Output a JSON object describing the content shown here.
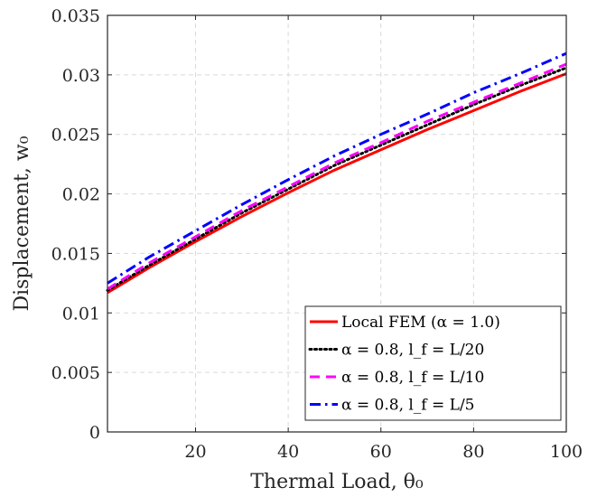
{
  "chart_data": {
    "type": "line",
    "xlabel": "Thermal Load, θ₀",
    "ylabel": "Displacement, w₀",
    "xlim": [
      1,
      100
    ],
    "ylim": [
      0,
      0.035
    ],
    "xticks": [
      20,
      40,
      60,
      80,
      100
    ],
    "xtick_labels": [
      "20",
      "40",
      "60",
      "80",
      "100"
    ],
    "yticks": [
      0,
      0.005,
      0.01,
      0.015,
      0.02,
      0.025,
      0.03,
      0.035
    ],
    "ytick_labels": [
      "0",
      "0.005",
      "0.01",
      "0.015",
      "0.02",
      "0.025",
      "0.03",
      "0.035"
    ],
    "grid": true,
    "legend_position": "bottom-right",
    "x": [
      1,
      10,
      20,
      30,
      40,
      50,
      60,
      70,
      80,
      90,
      100
    ],
    "series": [
      {
        "name": "Local FEM (α = 1.0)",
        "color": "#ff0000",
        "style": "solid",
        "values": [
          0.0117,
          0.0138,
          0.016,
          0.0181,
          0.0201,
          0.022,
          0.0237,
          0.0254,
          0.027,
          0.0286,
          0.0301
        ]
      },
      {
        "name": "α = 0.8, l_f = L/20",
        "color": "#000000",
        "style": "dotted",
        "values": [
          0.0119,
          0.014,
          0.0162,
          0.0184,
          0.0204,
          0.0224,
          0.0241,
          0.0258,
          0.0275,
          0.0291,
          0.0306
        ]
      },
      {
        "name": "α = 0.8, l_f = L/10",
        "color": "#ff00ff",
        "style": "dashed",
        "values": [
          0.012,
          0.0142,
          0.0164,
          0.0186,
          0.0206,
          0.0226,
          0.0243,
          0.0261,
          0.0277,
          0.0293,
          0.0309
        ]
      },
      {
        "name": "α = 0.8, l_f = L/5",
        "color": "#0000ff",
        "style": "dashdot",
        "values": [
          0.0125,
          0.0147,
          0.0169,
          0.0191,
          0.0212,
          0.0232,
          0.025,
          0.0267,
          0.0285,
          0.0301,
          0.0318
        ]
      }
    ]
  }
}
